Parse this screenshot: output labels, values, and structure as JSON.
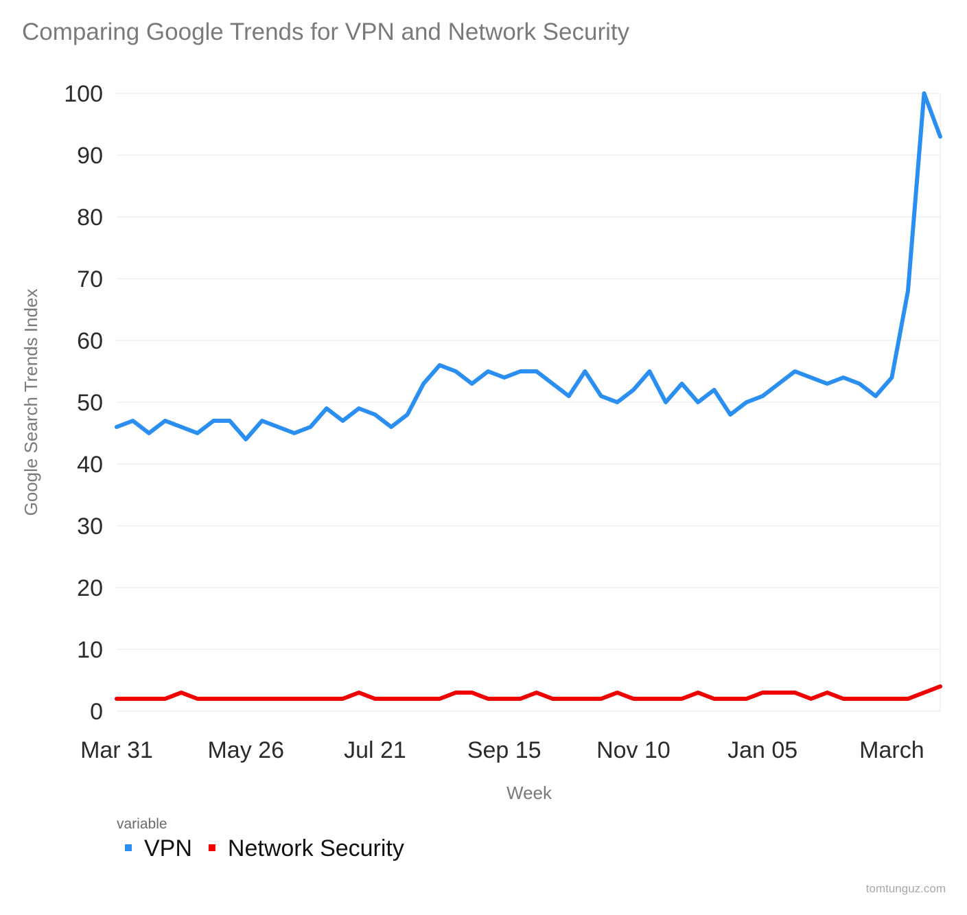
{
  "chart_data": {
    "type": "line",
    "title": "Comparing Google Trends for VPN and Network Security",
    "xlabel": "Week",
    "ylabel": "Google Search Trends Index",
    "ylim": [
      0,
      100
    ],
    "yticks": [
      0,
      10,
      20,
      30,
      40,
      50,
      60,
      70,
      80,
      90,
      100
    ],
    "xtick_labels": [
      "Mar 31",
      "May 26",
      "Jul 21",
      "Sep 15",
      "Nov 10",
      "Jan 05",
      "March"
    ],
    "xtick_positions": [
      0,
      8,
      16,
      24,
      32,
      40,
      48
    ],
    "grid": true,
    "legend": {
      "title": "variable",
      "placement": "bottom-left"
    },
    "series": [
      {
        "name": "VPN",
        "color": "#2a8ff0",
        "values": [
          46,
          47,
          45,
          47,
          46,
          45,
          47,
          47,
          44,
          47,
          46,
          45,
          46,
          49,
          47,
          49,
          48,
          46,
          48,
          53,
          56,
          55,
          53,
          55,
          54,
          55,
          55,
          53,
          51,
          55,
          51,
          50,
          52,
          55,
          50,
          53,
          50,
          52,
          48,
          50,
          51,
          53,
          55,
          54,
          53,
          54,
          53,
          51,
          54,
          68,
          100,
          93
        ]
      },
      {
        "name": "Network Security",
        "color": "#f00000",
        "values": [
          2,
          2,
          2,
          2,
          3,
          2,
          2,
          2,
          2,
          2,
          2,
          2,
          2,
          2,
          2,
          3,
          2,
          2,
          2,
          2,
          2,
          3,
          3,
          2,
          2,
          2,
          3,
          2,
          2,
          2,
          2,
          3,
          2,
          2,
          2,
          2,
          3,
          2,
          2,
          2,
          3,
          3,
          3,
          2,
          3,
          2,
          2,
          2,
          2,
          2,
          3,
          4
        ]
      }
    ],
    "watermark": "tomtunguz.com"
  }
}
